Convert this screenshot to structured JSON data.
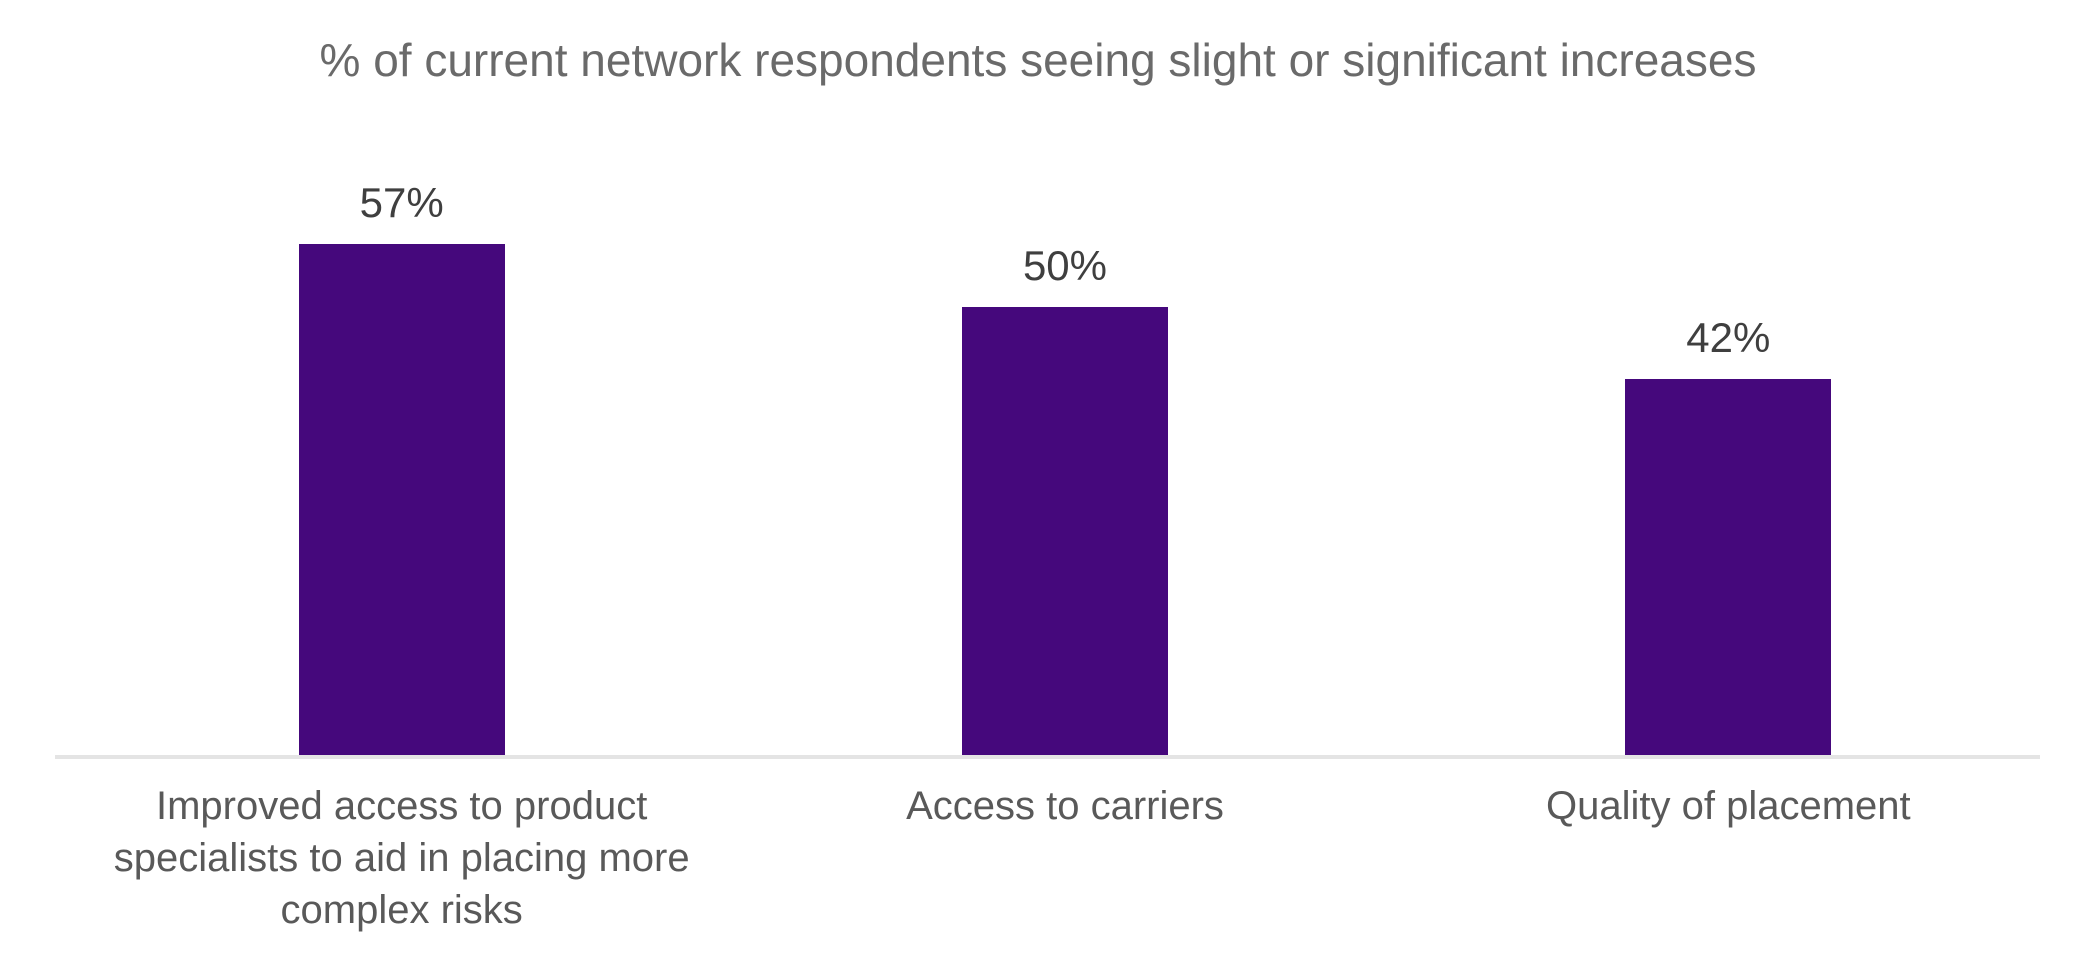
{
  "chart_data": {
    "type": "bar",
    "title": "% of current network respondents seeing slight or significant increases",
    "categories": [
      "Improved access to product specialists to aid in placing more complex risks",
      "Access to carriers",
      "Quality of placement"
    ],
    "values": [
      57,
      50,
      42
    ],
    "value_labels": [
      "57%",
      "50%",
      "42%"
    ],
    "xlabel": "",
    "ylabel": "",
    "ylim": [
      0,
      68
    ],
    "grid": false,
    "legend_position": "none",
    "data_labels_position": "above-bar",
    "colors": {
      "bar": "#45087c",
      "title_text": "#6a6a6a",
      "value_label_text": "#3f3f3f",
      "category_label_text": "#595959",
      "axis_line": "#e4e4e4",
      "background": "#ffffff"
    }
  }
}
